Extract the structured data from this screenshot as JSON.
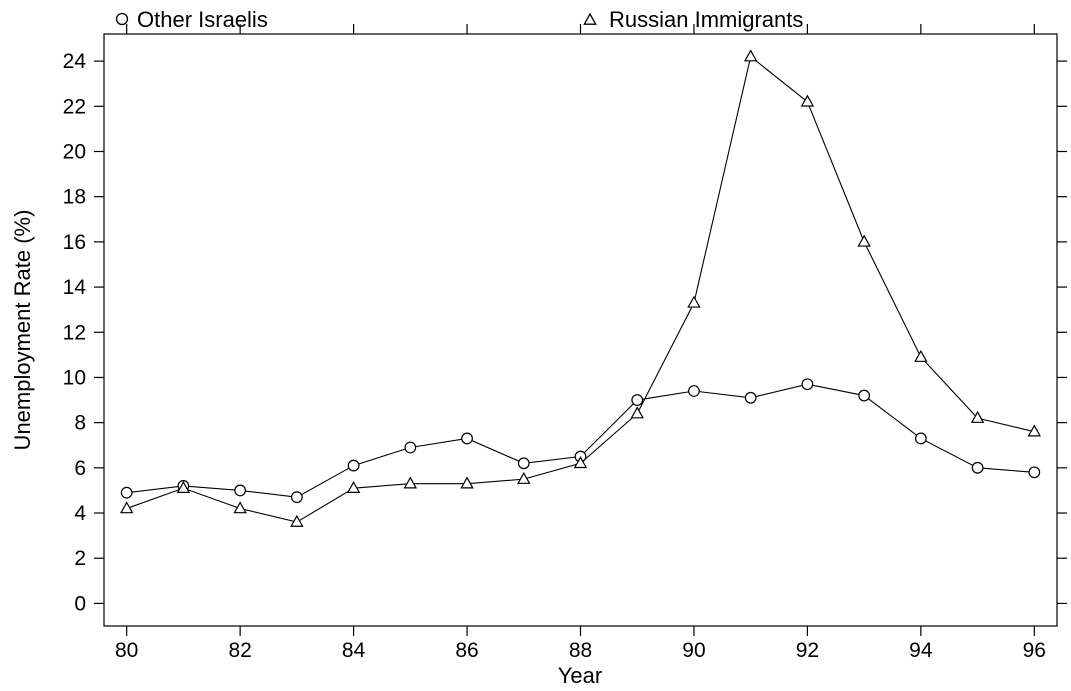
{
  "chart_data": {
    "type": "line",
    "xlabel": "Year",
    "ylabel": "Unemployment Rate (%)",
    "xlim": [
      79.6,
      96.4
    ],
    "ylim": [
      -1.0,
      25.2
    ],
    "x_ticks": [
      80,
      82,
      84,
      86,
      88,
      90,
      92,
      94,
      96
    ],
    "x_tick_labels": [
      "80",
      "82",
      "84",
      "86",
      "88",
      "90",
      "92",
      "94",
      "96"
    ],
    "y_ticks": [
      0,
      2,
      4,
      6,
      8,
      10,
      12,
      14,
      16,
      18,
      20,
      22,
      24
    ],
    "y_tick_labels": [
      "0",
      "2",
      "4",
      "6",
      "8",
      "10",
      "12",
      "14",
      "16",
      "18",
      "20",
      "22",
      "24"
    ],
    "grid": false,
    "legend_position": "top",
    "x": [
      80,
      81,
      82,
      83,
      84,
      85,
      86,
      87,
      88,
      89,
      90,
      91,
      92,
      93,
      94,
      95,
      96
    ],
    "series": [
      {
        "name": "Other Israelis",
        "marker": "circle",
        "values": [
          4.9,
          5.2,
          5.0,
          4.7,
          6.1,
          6.9,
          7.3,
          6.2,
          6.5,
          9.0,
          9.4,
          9.1,
          9.7,
          9.2,
          7.3,
          6.0,
          5.8
        ]
      },
      {
        "name": "Russian Immigrants",
        "marker": "triangle",
        "values": [
          4.2,
          5.1,
          4.2,
          3.6,
          5.1,
          5.3,
          5.3,
          5.5,
          6.2,
          8.4,
          13.3,
          24.2,
          22.2,
          16.0,
          10.9,
          8.2,
          7.6
        ]
      }
    ]
  }
}
